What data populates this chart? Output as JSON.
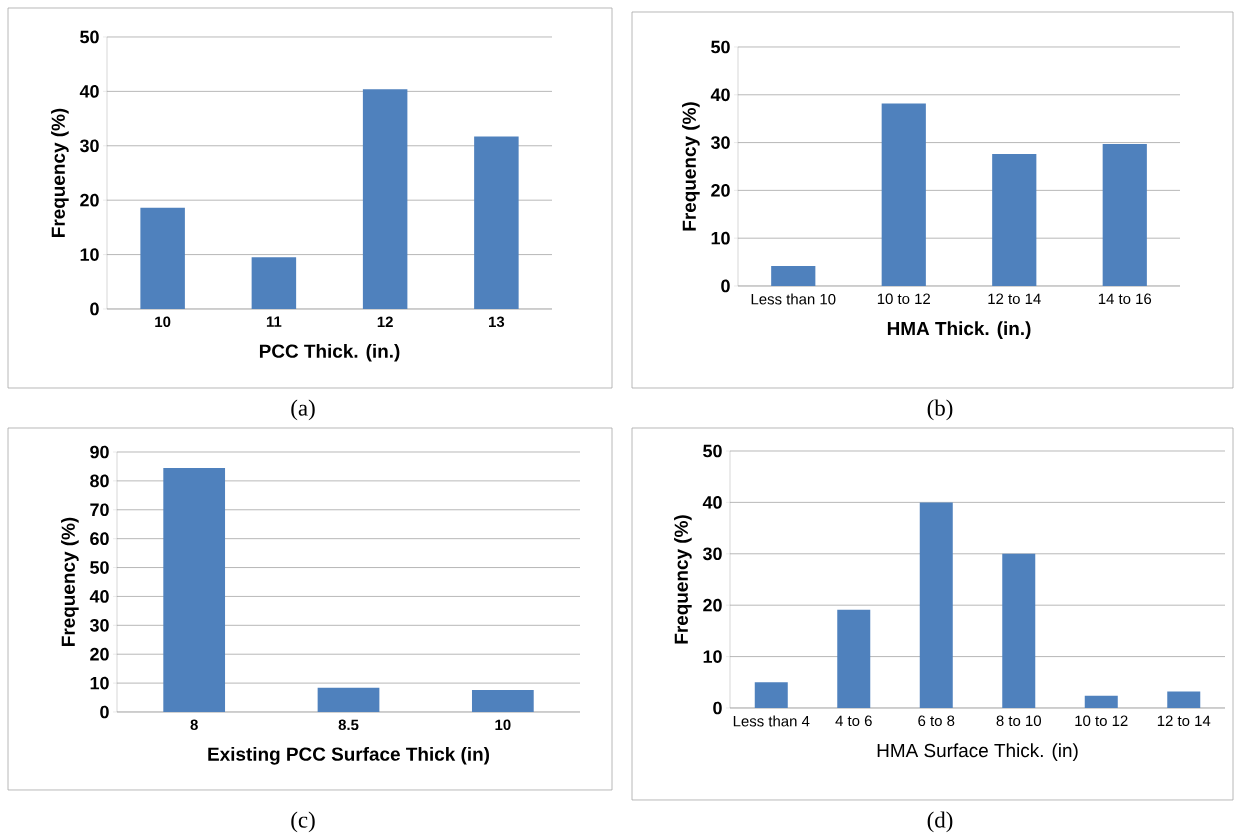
{
  "chart_data": [
    {
      "type": "bar",
      "categories": [
        "10",
        "11",
        "12",
        "13"
      ],
      "values": [
        18.6,
        9.5,
        40.4,
        31.7
      ],
      "color": "#4f81bd",
      "xlabel": "PCC Thick. (in.)",
      "ylabel": "Frequency (%)",
      "ylim": [
        0,
        50
      ],
      "yticks": [
        0,
        10,
        20,
        30,
        40,
        50
      ],
      "grid": "y",
      "annotations": [
        "(a)"
      ]
    },
    {
      "type": "bar",
      "categories": [
        "Less than 10",
        "10 to 12",
        "12 to 14",
        "14 to 16"
      ],
      "values": [
        4.2,
        38.2,
        27.6,
        29.7
      ],
      "color": "#4f81bd",
      "xlabel": "HMA Thick. (in.)",
      "ylabel": "Frequency (%)",
      "ylim": [
        0,
        50
      ],
      "yticks": [
        0,
        10,
        20,
        30,
        40,
        50
      ],
      "grid": "y",
      "annotations": [
        "(b)"
      ]
    },
    {
      "type": "bar",
      "categories": [
        "8",
        "8.5",
        "10"
      ],
      "values": [
        84.5,
        8.4,
        7.6
      ],
      "color": "#4f81bd",
      "xlabel": "Existing PCC Surface Thick (in)",
      "ylabel": "Frequency (%)",
      "ylim": [
        0,
        90
      ],
      "yticks": [
        0,
        10,
        20,
        30,
        40,
        50,
        60,
        70,
        80,
        90
      ],
      "grid": "y",
      "annotations": [
        "(c)"
      ]
    },
    {
      "type": "bar",
      "categories": [
        "Less than 4",
        "4 to 6",
        "6 to 8",
        "8 to 10",
        "10 to 12",
        "12 to 14"
      ],
      "values": [
        5.0,
        19.1,
        40.0,
        30.0,
        2.4,
        3.2
      ],
      "color": "#4f81bd",
      "xlabel": "HMA Surface Thick. (in)",
      "ylabel": "Frequency (%)",
      "ylim": [
        0,
        50
      ],
      "yticks": [
        0,
        10,
        20,
        30,
        40,
        50
      ],
      "grid": "y",
      "annotations": [
        "(d)"
      ]
    }
  ]
}
